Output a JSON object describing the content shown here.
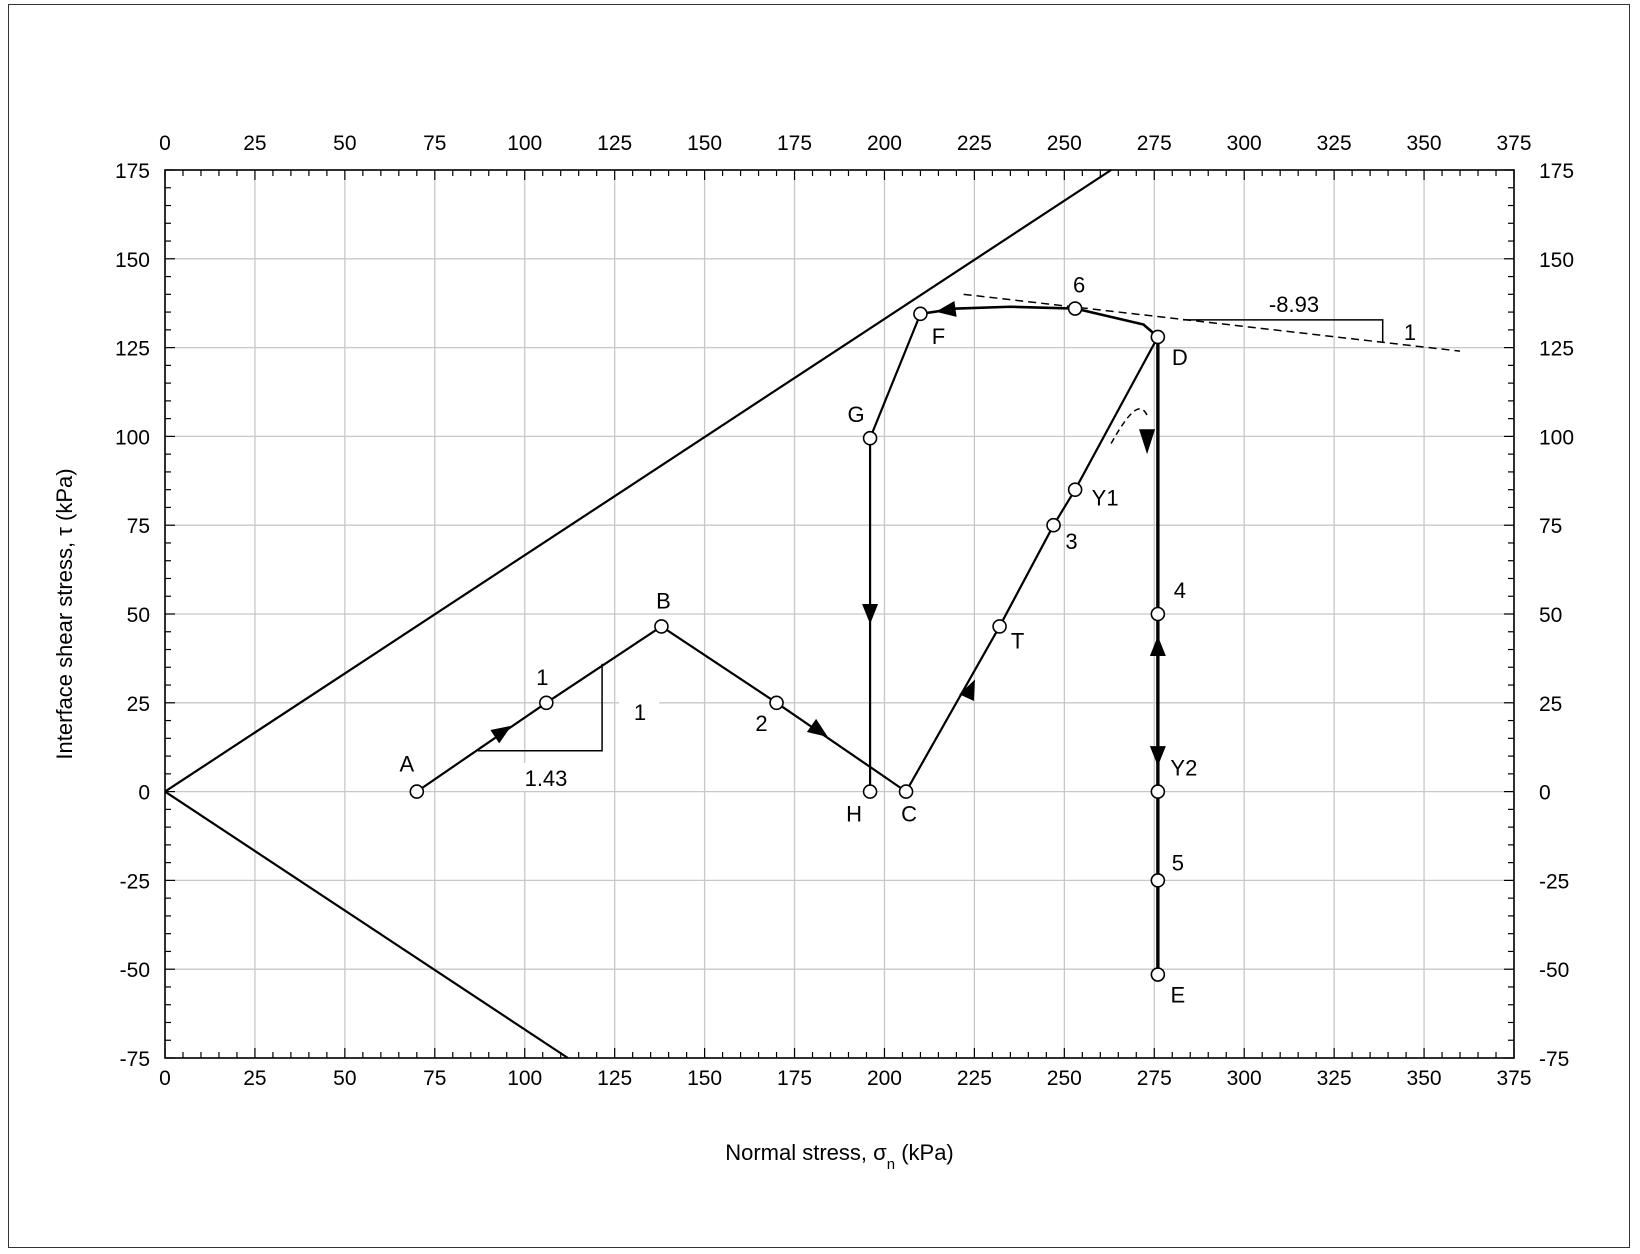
{
  "chart_data": {
    "type": "line",
    "xlabel": "Normal stress, σ",
    "xlabel_sub": "n",
    "xlabel_unit": " (kPa)",
    "ylabel": "Interface shear stress, τ (kPa)",
    "xlim": [
      0,
      375
    ],
    "ylim": [
      -75,
      175
    ],
    "x_ticks": [
      "0",
      "25",
      "50",
      "75",
      "100",
      "125",
      "150",
      "175",
      "200",
      "225",
      "250",
      "275",
      "300",
      "325",
      "350",
      "375"
    ],
    "y_ticks": [
      "-75",
      "-50",
      "-25",
      "0",
      "25",
      "50",
      "75",
      "100",
      "125",
      "150",
      "175"
    ],
    "grid": true,
    "colors": {
      "line": "#000000",
      "grid": "#c8c8c8",
      "marker_fill": "#ffffff"
    },
    "failure_envelope_upper": [
      [
        0,
        0
      ],
      [
        263,
        175
      ]
    ],
    "failure_envelope_lower": [
      [
        0,
        0
      ],
      [
        112,
        -75
      ]
    ],
    "path": [
      {
        "x": 70,
        "y": 0
      },
      {
        "x": 106,
        "y": 25
      },
      {
        "x": 138,
        "y": 46.5
      },
      {
        "x": 170,
        "y": 25
      },
      {
        "x": 206,
        "y": 0
      },
      {
        "x": 232,
        "y": 46.5
      },
      {
        "x": 247,
        "y": 75
      },
      {
        "x": 253,
        "y": 85
      },
      {
        "x": 276,
        "y": 128
      },
      {
        "x": 276,
        "y": 50
      },
      {
        "x": 276,
        "y": 0
      },
      {
        "x": 276,
        "y": -25
      },
      {
        "x": 276,
        "y": -51.5
      }
    ],
    "unload_curve": [
      {
        "x": 276,
        "y": 128
      },
      {
        "x": 272,
        "y": 131.5
      },
      {
        "x": 253,
        "y": 136
      },
      {
        "x": 235,
        "y": 136.5
      },
      {
        "x": 220,
        "y": 136
      },
      {
        "x": 210,
        "y": 134.5
      }
    ],
    "second_path": [
      {
        "x": 210,
        "y": 134.5
      },
      {
        "x": 196,
        "y": 99.5
      },
      {
        "x": 196,
        "y": 0
      }
    ],
    "reference_line": [
      [
        222,
        140
      ],
      [
        360,
        124
      ]
    ],
    "points": [
      {
        "label": "A",
        "x": 70,
        "y": 0
      },
      {
        "label": "1",
        "x": 106,
        "y": 25
      },
      {
        "label": "B",
        "x": 138,
        "y": 46.5
      },
      {
        "label": "2",
        "x": 170,
        "y": 25
      },
      {
        "label": "C",
        "x": 206,
        "y": 0
      },
      {
        "label": "T",
        "x": 232,
        "y": 46.5
      },
      {
        "label": "3",
        "x": 247,
        "y": 75
      },
      {
        "label": "Y1",
        "x": 253,
        "y": 85
      },
      {
        "label": "D",
        "x": 276,
        "y": 128
      },
      {
        "label": "4",
        "x": 276,
        "y": 50
      },
      {
        "label": "Y2",
        "x": 276,
        "y": 0
      },
      {
        "label": "5",
        "x": 276,
        "y": -25
      },
      {
        "label": "E",
        "x": 276,
        "y": -51.5
      },
      {
        "label": "6",
        "x": 253,
        "y": 136
      },
      {
        "label": "F",
        "x": 210,
        "y": 134.5
      },
      {
        "label": "G",
        "x": 196,
        "y": 99.5
      },
      {
        "label": "H",
        "x": 196,
        "y": 0
      }
    ],
    "slope_annotations": [
      {
        "run_label": "1.43",
        "rise_label": "1"
      },
      {
        "run_label": "-8.93",
        "rise_label": "1"
      }
    ]
  }
}
